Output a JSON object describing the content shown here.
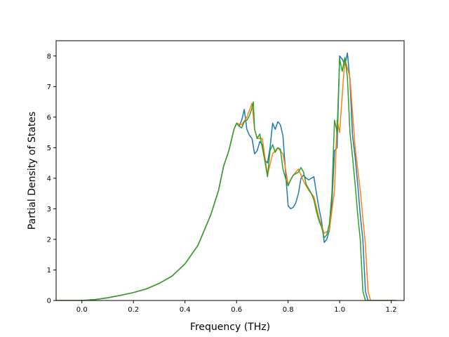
{
  "chart_data": {
    "type": "line",
    "title": "",
    "xlabel": "Frequency (THz)",
    "ylabel": "Partial Density of States",
    "xlim": [
      -0.1,
      1.25
    ],
    "ylim": [
      0,
      8.5
    ],
    "xticks": [
      0.0,
      0.2,
      0.4,
      0.6,
      0.8,
      1.0,
      1.2
    ],
    "xtick_labels": [
      "0.0",
      "0.2",
      "0.4",
      "0.6",
      "0.8",
      "1.0",
      "1.2"
    ],
    "yticks": [
      0,
      1,
      2,
      3,
      4,
      5,
      6,
      7,
      8
    ],
    "ytick_labels": [
      "0",
      "1",
      "2",
      "3",
      "4",
      "5",
      "6",
      "7",
      "8"
    ],
    "grid": false,
    "legend": "none",
    "series": [
      {
        "name": "blue",
        "color": "#1f77b4",
        "x": [
          -0.11,
          -0.05,
          0.0,
          0.05,
          0.1,
          0.15,
          0.2,
          0.25,
          0.3,
          0.35,
          0.4,
          0.45,
          0.5,
          0.53,
          0.55,
          0.57,
          0.59,
          0.6,
          0.61,
          0.62,
          0.63,
          0.64,
          0.65,
          0.66,
          0.67,
          0.68,
          0.69,
          0.7,
          0.71,
          0.72,
          0.73,
          0.74,
          0.75,
          0.76,
          0.77,
          0.78,
          0.79,
          0.8,
          0.81,
          0.82,
          0.83,
          0.84,
          0.85,
          0.86,
          0.87,
          0.88,
          0.89,
          0.9,
          0.91,
          0.92,
          0.93,
          0.94,
          0.95,
          0.96,
          0.97,
          0.98,
          0.99,
          1.0,
          1.01,
          1.02,
          1.03,
          1.04,
          1.05,
          1.06,
          1.07,
          1.08,
          1.09,
          1.1,
          1.11,
          1.12,
          1.15,
          1.2,
          1.22
        ],
        "y": [
          0.0,
          0.0,
          0.0,
          0.03,
          0.09,
          0.17,
          0.26,
          0.38,
          0.56,
          0.8,
          1.2,
          1.8,
          2.8,
          3.6,
          4.4,
          4.9,
          5.6,
          5.8,
          5.7,
          5.9,
          6.25,
          5.6,
          5.4,
          5.3,
          4.8,
          4.9,
          5.2,
          5.1,
          4.6,
          4.5,
          5.0,
          5.8,
          5.6,
          5.85,
          5.75,
          5.4,
          4.2,
          3.1,
          3.0,
          3.05,
          3.2,
          3.5,
          4.0,
          4.1,
          4.0,
          3.95,
          4.0,
          4.05,
          3.5,
          3.0,
          2.6,
          1.9,
          2.0,
          2.3,
          3.2,
          4.9,
          5.0,
          8.0,
          7.9,
          7.7,
          8.1,
          7.2,
          5.4,
          4.7,
          3.8,
          2.8,
          2.0,
          0.3,
          0.0,
          0.0,
          0.0,
          0.0,
          0.0
        ]
      },
      {
        "name": "orange",
        "color": "#ff7f0e",
        "x": [
          -0.11,
          -0.05,
          0.0,
          0.05,
          0.1,
          0.15,
          0.2,
          0.25,
          0.3,
          0.35,
          0.4,
          0.45,
          0.5,
          0.53,
          0.55,
          0.57,
          0.59,
          0.6,
          0.62,
          0.64,
          0.66,
          0.67,
          0.68,
          0.7,
          0.72,
          0.74,
          0.76,
          0.78,
          0.8,
          0.82,
          0.84,
          0.86,
          0.88,
          0.9,
          0.92,
          0.94,
          0.96,
          0.98,
          0.99,
          1.0,
          1.02,
          1.04,
          1.06,
          1.08,
          1.1,
          1.11,
          1.12,
          1.15,
          1.22
        ],
        "y": [
          0.0,
          0.0,
          0.0,
          0.03,
          0.09,
          0.17,
          0.26,
          0.38,
          0.56,
          0.8,
          1.2,
          1.8,
          2.8,
          3.6,
          4.4,
          4.9,
          5.6,
          5.8,
          5.75,
          6.0,
          6.45,
          5.6,
          5.3,
          5.3,
          4.1,
          4.8,
          5.0,
          4.8,
          3.8,
          4.1,
          4.3,
          3.9,
          3.6,
          3.4,
          2.7,
          2.2,
          2.3,
          3.6,
          5.9,
          5.5,
          7.9,
          7.3,
          5.0,
          3.6,
          1.8,
          0.3,
          0.0,
          0.0,
          0.0
        ]
      },
      {
        "name": "green",
        "color": "#2ca02c",
        "x": [
          -0.11,
          -0.05,
          0.0,
          0.05,
          0.1,
          0.15,
          0.2,
          0.25,
          0.3,
          0.35,
          0.4,
          0.45,
          0.5,
          0.53,
          0.55,
          0.57,
          0.59,
          0.6,
          0.61,
          0.62,
          0.63,
          0.64,
          0.65,
          0.66,
          0.665,
          0.67,
          0.68,
          0.69,
          0.7,
          0.71,
          0.72,
          0.73,
          0.74,
          0.75,
          0.76,
          0.77,
          0.78,
          0.79,
          0.8,
          0.81,
          0.82,
          0.83,
          0.84,
          0.85,
          0.86,
          0.87,
          0.88,
          0.89,
          0.9,
          0.91,
          0.92,
          0.93,
          0.94,
          0.95,
          0.96,
          0.97,
          0.98,
          0.99,
          1.0,
          1.01,
          1.02,
          1.03,
          1.04,
          1.05,
          1.06,
          1.07,
          1.08,
          1.09,
          1.1,
          1.11,
          1.12,
          1.15,
          1.2,
          1.22
        ],
        "y": [
          0.0,
          0.0,
          0.0,
          0.03,
          0.09,
          0.17,
          0.26,
          0.38,
          0.56,
          0.8,
          1.2,
          1.8,
          2.8,
          3.6,
          4.4,
          4.9,
          5.6,
          5.8,
          5.7,
          5.65,
          5.85,
          5.9,
          6.05,
          6.3,
          6.5,
          5.6,
          5.3,
          5.45,
          5.0,
          4.55,
          4.05,
          4.9,
          5.1,
          4.85,
          5.0,
          4.95,
          4.3,
          4.0,
          3.75,
          3.95,
          4.1,
          4.15,
          4.2,
          4.35,
          4.2,
          3.8,
          3.65,
          3.5,
          3.3,
          2.9,
          2.6,
          2.4,
          2.05,
          2.15,
          2.5,
          3.5,
          5.9,
          5.5,
          7.9,
          7.5,
          7.95,
          7.3,
          5.5,
          4.7,
          3.8,
          2.8,
          2.0,
          0.3,
          0.0,
          0.0,
          0.0,
          0.0,
          0.0,
          0.0
        ]
      }
    ]
  }
}
